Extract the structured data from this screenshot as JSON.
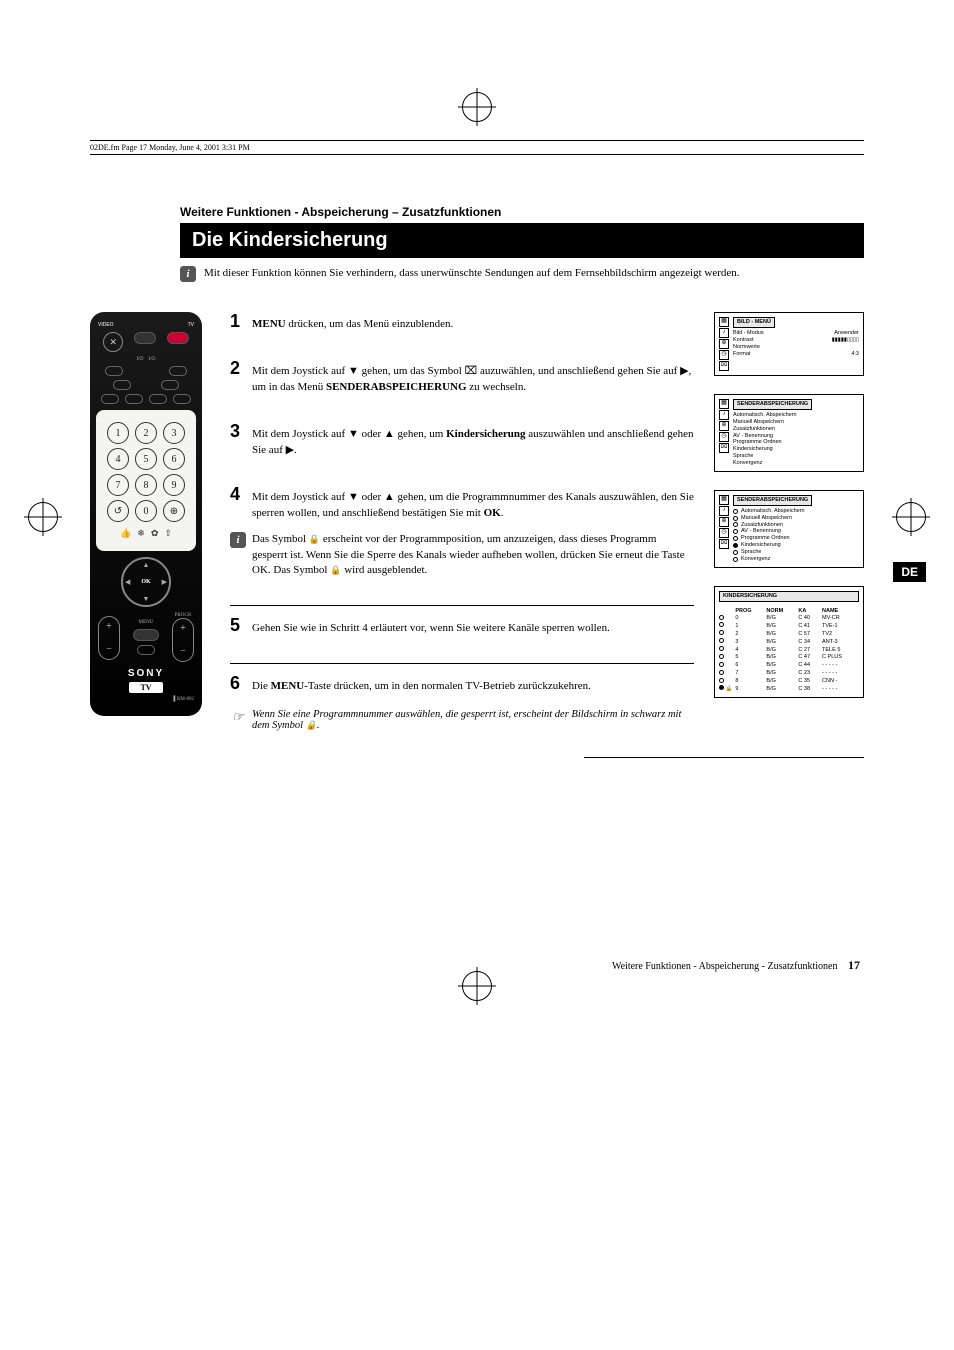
{
  "header_runner": "02DE.fm  Page 17  Monday, June 4, 2001  3:31 PM",
  "section_label": "Weitere Funktionen - Abspeicherung – Zusatzfunktionen",
  "page_title": "Die Kindersicherung",
  "intro": "Mit dieser Funktion können Sie verhindern, dass unerwünschte Sendungen auf dem Fernsehbildschirm angezeigt werden.",
  "de_tab": "DE",
  "remote": {
    "labels": {
      "video": "VIDEO",
      "tv": "TV",
      "menu": "MENU",
      "progr": "PROGR",
      "ok": "OK"
    },
    "brand": "SONY",
    "tv_badge": "TV",
    "model": "RM-892",
    "numpad": [
      "1",
      "2",
      "3",
      "4",
      "5",
      "6",
      "7",
      "8",
      "9",
      "0"
    ]
  },
  "steps": [
    {
      "n": "1",
      "html": "<b>MENU</b> drücken, um das Menü einzublenden."
    },
    {
      "n": "2",
      "html": "Mit dem Joystick auf <span class='glyph'>▼</span> gehen, um das Symbol <span class='glyph'>⌧</span> auzuwählen, und anschließend gehen Sie auf <span class='glyph'>▶</span>, um in das Menü <b>SENDERABSPEICHERUNG</b> zu wechseln."
    },
    {
      "n": "3",
      "html": "Mit dem Joystick auf <span class='glyph'>▼</span> oder <span class='glyph'>▲</span> gehen, um <b>Kindersicherung</b> auszuwählen und anschließend gehen Sie auf <span class='glyph'>▶</span>."
    },
    {
      "n": "4",
      "html": "Mit dem Joystick auf <span class='glyph'>▼</span> oder <span class='glyph'>▲</span> gehen, um die Programmnummer des Kanals auszuwählen, den Sie sperren wollen, und anschließend bestätigen Sie mit <b>OK</b>.",
      "info": "Das Symbol <span class='lock-glyph'></span> erscheint vor der Programmposition, um anzuzeigen, dass dieses Programm gesperrt ist. Wenn Sie die Sperre des Kanals wieder aufheben wollen, drücken Sie erneut die Taste OK. Das Symbol <span class='lock-glyph'></span> wird ausgeblendet."
    },
    {
      "n": "5",
      "html": "Gehen Sie wie in Schritt 4 erläutert vor, wenn Sie weitere Kanäle sperren wollen."
    },
    {
      "n": "6",
      "html": "Die <b>MENU</b>-Taste drücken, um in den normalen TV-Betrieb zurückzukehren.",
      "note": "Wenn Sie eine Programmnummer auswählen, die gesperrt ist, erscheint der Bildschirm in schwarz mit dem Symbol <span class='lock-glyph'></span>."
    }
  ],
  "osd1": {
    "title": "BILD - MENÜ",
    "rows": [
      [
        "Bild - Modus",
        "Anwender"
      ],
      [
        "Kontrast",
        "▮▮▮▮▮▯▯▯▯"
      ],
      [
        "Normwerte",
        ""
      ],
      [
        "Format",
        "4:3"
      ]
    ]
  },
  "osd2": {
    "title": "SENDERABSPEICHERUNG",
    "items": [
      "Automatisch. Abspeichern",
      "Manuell Abspeichern",
      "Zusatzfunktionen",
      "AV - Benennung",
      "Programme Ordnen",
      "Kindersicherung",
      "Sprache",
      "Konvergenz"
    ]
  },
  "osd3": {
    "title": "SENDERABSPEICHERUNG",
    "items": [
      "Automatisch. Abspeichern",
      "Manuell Abspeichern",
      "Zusatzfunktionen",
      "AV - Benennung",
      "Programme Ordnen",
      "Kindersicherung",
      "Sprache",
      "Konvergenz"
    ],
    "selected": 5
  },
  "osd4": {
    "title": "KINDERSICHERUNG",
    "columns": [
      "PROG",
      "NORM",
      "KA",
      "NAME"
    ],
    "rows": [
      {
        "lock": false,
        "prog": "0",
        "norm": "B/G",
        "ka": "C  40",
        "name": "MV-CR"
      },
      {
        "lock": false,
        "prog": "1",
        "norm": "B/G",
        "ka": "C  41",
        "name": "TVE-1"
      },
      {
        "lock": false,
        "prog": "2",
        "norm": "B/G",
        "ka": "C  57",
        "name": "TV2"
      },
      {
        "lock": false,
        "prog": "3",
        "norm": "B/G",
        "ka": "C  34",
        "name": "ANT-3"
      },
      {
        "lock": false,
        "prog": "4",
        "norm": "B/G",
        "ka": "C  27",
        "name": "TELE 5"
      },
      {
        "lock": false,
        "prog": "5",
        "norm": "B/G",
        "ka": "C  47",
        "name": "C PLUS"
      },
      {
        "lock": false,
        "prog": "6",
        "norm": "B/G",
        "ka": "C  44",
        "name": "- - - - -"
      },
      {
        "lock": false,
        "prog": "7",
        "norm": "B/G",
        "ka": "C  23",
        "name": "- - - - -"
      },
      {
        "lock": false,
        "prog": "8",
        "norm": "B/G",
        "ka": "C  35",
        "name": "CNN -"
      },
      {
        "lock": true,
        "prog": "9",
        "norm": "B/G",
        "ka": "C  38",
        "name": "- - - - -"
      }
    ],
    "selected": 9
  },
  "footer": {
    "text": "Weitere Funktionen - Abspeicherung - Zusatzfunktionen",
    "page": "17"
  }
}
